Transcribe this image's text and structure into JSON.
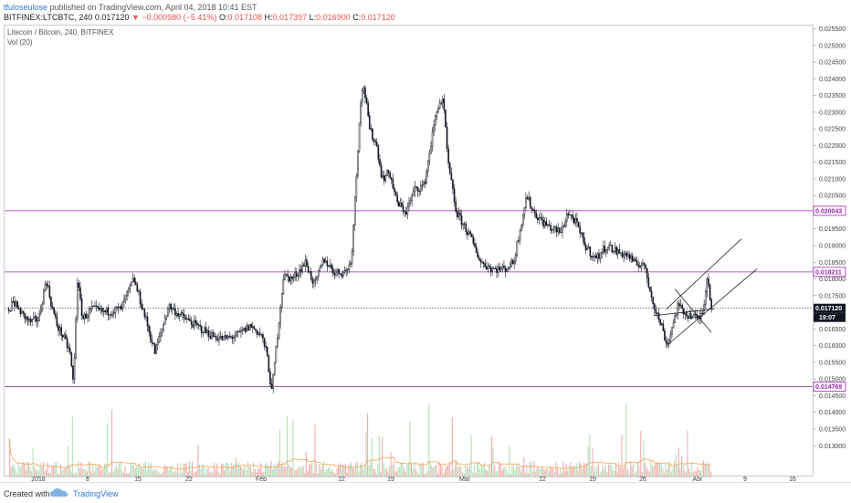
{
  "header": {
    "author": "tfuloseulose",
    "published": "published on TradingView.com, April 04, 2018 10:41 EST",
    "symbol_line": "BITFINEX:LTCBTC, 240",
    "last": "0.017120",
    "change": "−0.000980 (−5.41%)",
    "open_label": "O:",
    "open": "0.017108",
    "high_label": "H:",
    "high": "0.017397",
    "low_label": "L:",
    "low": "0.016900",
    "close_label": "C:",
    "close": "0.017120"
  },
  "legend": {
    "title": "Litecoin / Bitcoin, 240, BITFINEX",
    "volume": "Vol (20)"
  },
  "price_axis": {
    "labels": [
      "0.025500",
      "0.025000",
      "0.024500",
      "0.024000",
      "0.023500",
      "0.023000",
      "0.022500",
      "0.022000",
      "0.021500",
      "0.021000",
      "0.020500",
      "0.020000",
      "0.019500",
      "0.019000",
      "0.018500",
      "0.018000",
      "0.017500",
      "0.017000",
      "0.016500",
      "0.016000",
      "0.015500",
      "0.015000",
      "0.014500",
      "0.014000",
      "0.013500",
      "0.013000"
    ],
    "values": [
      0.0255,
      0.025,
      0.0245,
      0.024,
      0.0235,
      0.023,
      0.0225,
      0.022,
      0.0215,
      0.021,
      0.0205,
      0.02,
      0.0195,
      0.019,
      0.0185,
      0.018,
      0.0175,
      0.017,
      0.0165,
      0.016,
      0.0155,
      0.015,
      0.0145,
      0.014,
      0.0135,
      0.013
    ]
  },
  "time_axis": {
    "labels": [
      "2018",
      "8",
      "15",
      "22",
      "Feb",
      "12",
      "19",
      "Mar",
      "12",
      "19",
      "26",
      "Apr",
      "9",
      "16"
    ],
    "positions": [
      38,
      92,
      147,
      203,
      282,
      370,
      424,
      505,
      590,
      645,
      700,
      760,
      812,
      864
    ]
  },
  "levels": [
    {
      "name": "resistance",
      "value": 0.020043,
      "label": "0.020043",
      "color": "#9c27b0"
    },
    {
      "name": "mid",
      "value": 0.018211,
      "label": "0.018211",
      "color": "#9c27b0"
    },
    {
      "name": "support",
      "value": 0.014769,
      "label": "0.014769",
      "color": "#9c27b0"
    }
  ],
  "last_price": {
    "value": 0.01712,
    "label": "0.017120",
    "countdown": "19:07"
  },
  "chart_data": {
    "type": "candlestick",
    "symbol": "BITFINEX:LTCBTC",
    "interval": "240",
    "keypoints": [
      {
        "x": 8,
        "v": 0.0174
      },
      {
        "x": 18,
        "v": 0.017
      },
      {
        "x": 28,
        "v": 0.0167
      },
      {
        "x": 38,
        "v": 0.0168
      },
      {
        "x": 46,
        "v": 0.018
      },
      {
        "x": 52,
        "v": 0.0172
      },
      {
        "x": 58,
        "v": 0.0166
      },
      {
        "x": 66,
        "v": 0.0162
      },
      {
        "x": 72,
        "v": 0.0158
      },
      {
        "x": 76,
        "v": 0.0148
      },
      {
        "x": 80,
        "v": 0.018
      },
      {
        "x": 86,
        "v": 0.0168
      },
      {
        "x": 96,
        "v": 0.0171
      },
      {
        "x": 110,
        "v": 0.017
      },
      {
        "x": 128,
        "v": 0.0171
      },
      {
        "x": 142,
        "v": 0.018
      },
      {
        "x": 155,
        "v": 0.0168
      },
      {
        "x": 165,
        "v": 0.0158
      },
      {
        "x": 173,
        "v": 0.0165
      },
      {
        "x": 180,
        "v": 0.0172
      },
      {
        "x": 193,
        "v": 0.0169
      },
      {
        "x": 210,
        "v": 0.0166
      },
      {
        "x": 228,
        "v": 0.0163
      },
      {
        "x": 240,
        "v": 0.0162
      },
      {
        "x": 255,
        "v": 0.0163
      },
      {
        "x": 270,
        "v": 0.0166
      },
      {
        "x": 282,
        "v": 0.0163
      },
      {
        "x": 288,
        "v": 0.0157
      },
      {
        "x": 293,
        "v": 0.0146
      },
      {
        "x": 300,
        "v": 0.0165
      },
      {
        "x": 306,
        "v": 0.0181
      },
      {
        "x": 316,
        "v": 0.018
      },
      {
        "x": 330,
        "v": 0.0185
      },
      {
        "x": 340,
        "v": 0.0178
      },
      {
        "x": 350,
        "v": 0.0186
      },
      {
        "x": 362,
        "v": 0.0182
      },
      {
        "x": 373,
        "v": 0.0182
      },
      {
        "x": 380,
        "v": 0.0185
      },
      {
        "x": 386,
        "v": 0.0212
      },
      {
        "x": 390,
        "v": 0.0233
      },
      {
        "x": 394,
        "v": 0.0238
      },
      {
        "x": 400,
        "v": 0.0225
      },
      {
        "x": 408,
        "v": 0.022
      },
      {
        "x": 414,
        "v": 0.021
      },
      {
        "x": 422,
        "v": 0.0212
      },
      {
        "x": 430,
        "v": 0.0203
      },
      {
        "x": 440,
        "v": 0.02
      },
      {
        "x": 450,
        "v": 0.0207
      },
      {
        "x": 460,
        "v": 0.0208
      },
      {
        "x": 470,
        "v": 0.0225
      },
      {
        "x": 476,
        "v": 0.0233
      },
      {
        "x": 481,
        "v": 0.0233
      },
      {
        "x": 486,
        "v": 0.0215
      },
      {
        "x": 495,
        "v": 0.02
      },
      {
        "x": 510,
        "v": 0.0193
      },
      {
        "x": 522,
        "v": 0.0185
      },
      {
        "x": 535,
        "v": 0.0183
      },
      {
        "x": 548,
        "v": 0.0183
      },
      {
        "x": 558,
        "v": 0.0185
      },
      {
        "x": 565,
        "v": 0.0195
      },
      {
        "x": 572,
        "v": 0.0205
      },
      {
        "x": 580,
        "v": 0.02
      },
      {
        "x": 590,
        "v": 0.0197
      },
      {
        "x": 600,
        "v": 0.0195
      },
      {
        "x": 610,
        "v": 0.0194
      },
      {
        "x": 617,
        "v": 0.02
      },
      {
        "x": 626,
        "v": 0.0197
      },
      {
        "x": 636,
        "v": 0.019
      },
      {
        "x": 648,
        "v": 0.0186
      },
      {
        "x": 660,
        "v": 0.019
      },
      {
        "x": 672,
        "v": 0.0188
      },
      {
        "x": 684,
        "v": 0.0187
      },
      {
        "x": 692,
        "v": 0.0184
      },
      {
        "x": 700,
        "v": 0.0185
      },
      {
        "x": 706,
        "v": 0.0178
      },
      {
        "x": 714,
        "v": 0.017
      },
      {
        "x": 720,
        "v": 0.0166
      },
      {
        "x": 726,
        "v": 0.016
      },
      {
        "x": 732,
        "v": 0.0166
      },
      {
        "x": 738,
        "v": 0.0172
      },
      {
        "x": 744,
        "v": 0.017
      },
      {
        "x": 752,
        "v": 0.0169
      },
      {
        "x": 760,
        "v": 0.0168
      },
      {
        "x": 765,
        "v": 0.017
      },
      {
        "x": 770,
        "v": 0.0181
      },
      {
        "x": 775,
        "v": 0.0171
      }
    ],
    "volume_seed": 7,
    "colors": {
      "up_body": "#ffffff",
      "down_body": "#131722",
      "wick": "#131722",
      "vol_up": "#a5d6a7",
      "vol_down": "#ef9a9a",
      "vol_ma": "#f7a35c"
    }
  },
  "drawings": [
    {
      "name": "channel-upper-line",
      "from": [
        726,
        0.0171
      ],
      "to": [
        808,
        0.0192
      ]
    },
    {
      "name": "channel-lower-line",
      "from": [
        726,
        0.016
      ],
      "to": [
        825,
        0.0183
      ]
    },
    {
      "name": "wedge-upper-line",
      "from": [
        712,
        0.0169
      ],
      "to": [
        778,
        0.0171
      ]
    },
    {
      "name": "wedge-lower-line",
      "from": [
        735,
        0.0177
      ],
      "to": [
        775,
        0.0164
      ]
    }
  ],
  "footer": {
    "created_with": "Created with",
    "brand": "TradingView"
  }
}
